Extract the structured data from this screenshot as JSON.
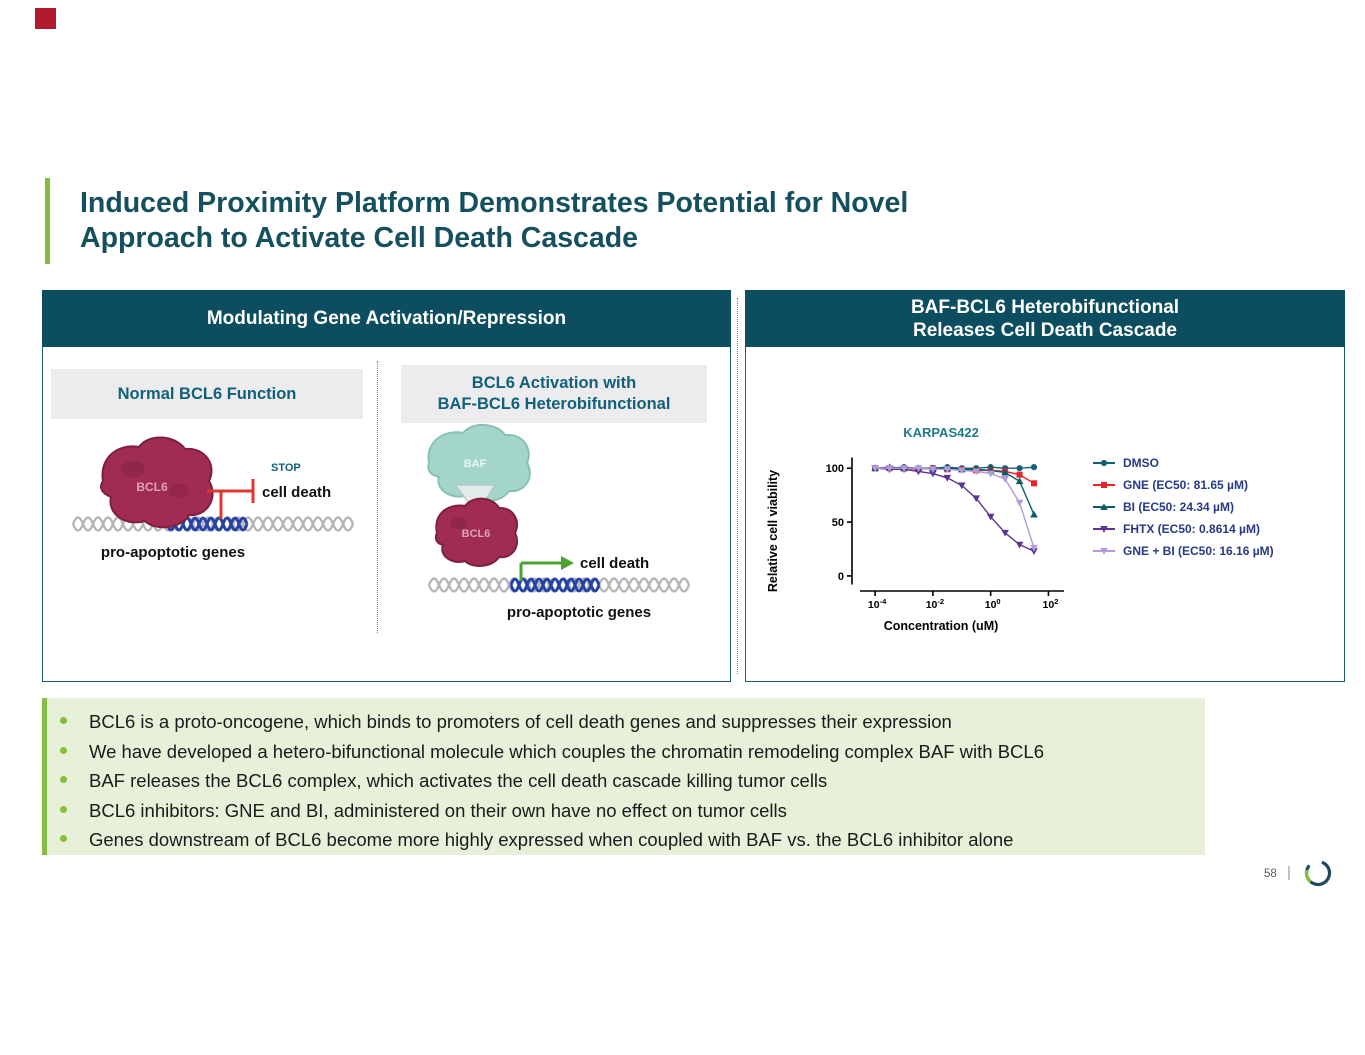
{
  "slide": {
    "title_line1": "Induced Proximity Platform Demonstrates Potential for Novel",
    "title_line2": "Approach to Activate Cell Death Cascade",
    "page_number": "58"
  },
  "left_panel": {
    "header": "Modulating Gene Activation/Repression",
    "normal": {
      "subheader": "Normal BCL6 Function",
      "bcl6_label": "BCL6",
      "stop_label": "STOP",
      "cell_death_label": "cell death",
      "genes_label": "pro-apoptotic genes"
    },
    "activation": {
      "subheader_line1": "BCL6 Activation with",
      "subheader_line2": "BAF-BCL6 Heterobifunctional",
      "baf_label": "BAF",
      "bcl6_label": "BCL6",
      "cell_death_label": "cell death",
      "genes_label": "pro-apoptotic genes"
    }
  },
  "right_panel": {
    "header_line1": "BAF-BCL6 Heterobifunctional",
    "header_line2": "Releases Cell Death Cascade"
  },
  "chart_data": {
    "type": "line",
    "title": "KARPAS422",
    "xlabel": "Concentration (uM)",
    "ylabel": "Relative cell viability",
    "x_scale": "log",
    "x_tick_exponents": [
      -4,
      -2,
      0,
      2
    ],
    "y_ticks": [
      0,
      50,
      100
    ],
    "ylim": [
      -15,
      115
    ],
    "legend_position": "right",
    "x_log10": [
      -4,
      -3.5,
      -3,
      -2.5,
      -2,
      -1.5,
      -1,
      -0.5,
      0,
      0.5,
      1,
      1.5
    ],
    "series": [
      {
        "name": "DMSO",
        "color": "#11607a",
        "marker": "circle",
        "values": [
          100,
          100,
          101,
          100,
          100,
          101,
          100,
          100,
          101,
          100,
          100,
          101
        ]
      },
      {
        "name": "GNE (EC50: 81.65 µM)",
        "color": "#e8232a",
        "marker": "square",
        "values": [
          100,
          100,
          100,
          99,
          100,
          99,
          99,
          98,
          98,
          97,
          94,
          86
        ]
      },
      {
        "name": "BI (EC50: 24.34 µM)",
        "color": "#0c5b66",
        "marker": "triangle-up",
        "values": [
          100,
          101,
          100,
          100,
          100,
          100,
          99,
          99,
          98,
          96,
          88,
          57
        ]
      },
      {
        "name": "FHTX (EC50: 0.8614 µM)",
        "color": "#5c3492",
        "marker": "triangle-down",
        "values": [
          100,
          99,
          99,
          97,
          95,
          91,
          84,
          72,
          55,
          40,
          29,
          23
        ]
      },
      {
        "name": "GNE + BI (EC50: 16.16 µM)",
        "color": "#b29bd8",
        "marker": "triangle-down",
        "values": [
          100,
          100,
          100,
          100,
          99,
          99,
          98,
          97,
          95,
          90,
          68,
          26
        ]
      }
    ]
  },
  "bullets": [
    "BCL6 is a proto-oncogene, which binds to promoters of cell death genes and suppresses their expression",
    "We have developed a hetero-bifunctional molecule which couples the chromatin remodeling complex BAF with BCL6",
    "BAF releases the BCL6 complex, which activates the cell death cascade killing tumor cells",
    "BCL6 inhibitors: GNE and BI, administered on their own have no effect on tumor cells",
    "Genes downstream of BCL6 become more highly expressed when coupled with BAF vs. the BCL6 inhibitor alone"
  ],
  "colors": {
    "header_bg": "#0c4e5f",
    "title_text": "#15505e",
    "accent_green": "#86bc40",
    "bullet_box_bg": "#e7f0d9",
    "bcl6_maroon": "#a02c53",
    "baf_teal": "#9dd2c6",
    "dna_blue": "#2743a6",
    "stop_red": "#e0372e",
    "arrow_green": "#4ba32f",
    "brand_red": "#b01c2c"
  }
}
